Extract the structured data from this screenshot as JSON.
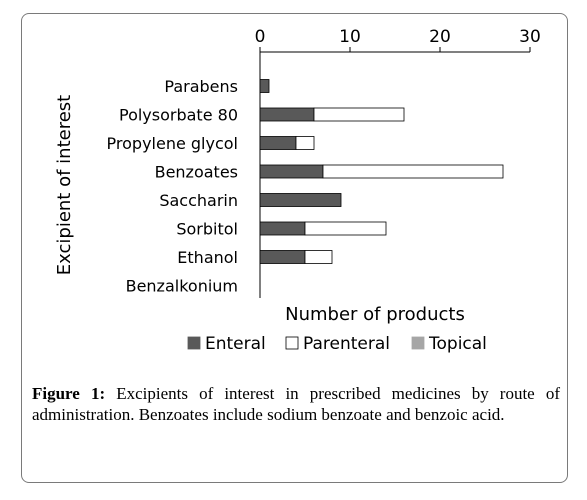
{
  "chart_data": {
    "type": "bar",
    "orientation": "horizontal",
    "stacked": true,
    "categories": [
      "Parabens",
      "Polysorbate 80",
      "Propylene glycol",
      "Benzoates",
      "Saccharin",
      "Sorbitol",
      "Ethanol",
      "Benzalkonium"
    ],
    "series": [
      {
        "name": "Enteral",
        "color": "#595959",
        "values": [
          1,
          6,
          4,
          7,
          9,
          5,
          5,
          0
        ]
      },
      {
        "name": "Parenteral",
        "color": "#ffffff",
        "values": [
          0,
          10,
          2,
          20,
          0,
          9,
          3,
          0
        ]
      },
      {
        "name": "Topical",
        "color": "#a6a6a6",
        "values": [
          0,
          0,
          0,
          0,
          0,
          0,
          0,
          0
        ]
      }
    ],
    "xticks": [
      0,
      10,
      20,
      30
    ],
    "xlim": [
      0,
      30
    ],
    "xaxis_position": "top",
    "xlabel": "Number of products",
    "ylabel": "Excipient of interest",
    "legend_position": "bottom",
    "grid": false
  },
  "caption": {
    "label": "Figure 1:",
    "text": " Excipients of interest in prescribed medicines by route of administration. Benzoates include sodium benzoate and benzoic acid."
  }
}
